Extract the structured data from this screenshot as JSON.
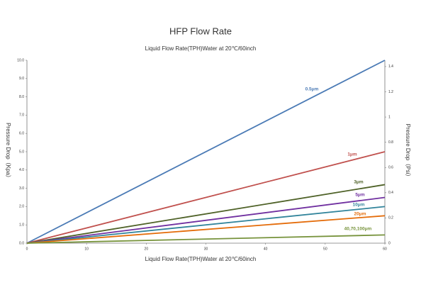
{
  "chart_data": {
    "type": "line",
    "title": "HFP Flow Rate",
    "subtitle": "Liquid Flow Rate(TPH)Water at 20℃/60inch",
    "xlabel": "Liquid Flow Rate(TPH)Water at 20℃/60inch",
    "ylabel": "Pressure Drop（Kpa）",
    "y2label": "Pressure Drop（Psi）",
    "x": [
      0,
      60
    ],
    "xlim": [
      0,
      60
    ],
    "xticks": [
      0,
      10,
      20,
      30,
      40,
      50,
      60
    ],
    "ylim": [
      0,
      10
    ],
    "yticks": [
      {
        "value": 0,
        "label": "0.0"
      },
      {
        "value": 1,
        "label": "1.0"
      },
      {
        "value": 2,
        "label": "2.0"
      },
      {
        "value": 3,
        "label": "3.0"
      },
      {
        "value": 4,
        "label": "4.0"
      },
      {
        "value": 5,
        "label": "5.0"
      },
      {
        "value": 6,
        "label": "6.0"
      },
      {
        "value": 7,
        "label": "7.0"
      },
      {
        "value": 8,
        "label": "8.0"
      },
      {
        "value": 9,
        "label": "9.0"
      },
      {
        "value": 10,
        "label": "10.0"
      }
    ],
    "y2lim": [
      0,
      1.45
    ],
    "y2ticks": [
      0,
      0.2,
      0.4,
      0.6,
      0.8,
      1,
      1.2,
      1.4
    ],
    "grid": false,
    "series": [
      {
        "name": "0.5μm",
        "color": "#4a7ab5",
        "values": [
          0,
          10.0
        ]
      },
      {
        "name": "1μm",
        "color": "#c0504d",
        "values": [
          0,
          5.0
        ]
      },
      {
        "name": "3μm",
        "color": "#4f6228",
        "values": [
          0,
          3.2
        ]
      },
      {
        "name": "5μm",
        "color": "#7030a0",
        "values": [
          0,
          2.5
        ]
      },
      {
        "name": "10μm",
        "color": "#31849b",
        "values": [
          0,
          2.0
        ]
      },
      {
        "name": "20μm",
        "color": "#e46c0a",
        "values": [
          0,
          1.5
        ]
      },
      {
        "name": "40,70,100μm",
        "color": "#77933c",
        "values": [
          0,
          0.45
        ]
      }
    ]
  }
}
